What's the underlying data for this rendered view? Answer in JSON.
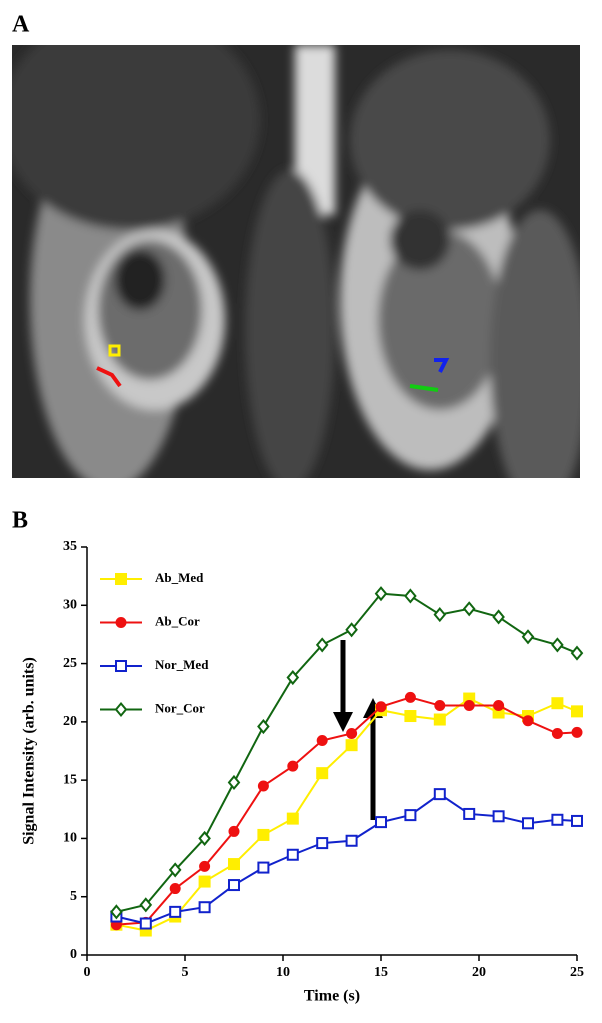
{
  "panel_a": {
    "label": "A"
  },
  "chart_data": {
    "type": "line",
    "panel_label": "B",
    "xlabel": "Time (s)",
    "ylabel": "Signal Intensity (arb. units)",
    "x": [
      1.5,
      3,
      4.5,
      6,
      7.5,
      9,
      10.5,
      12,
      13.5,
      15,
      16.5,
      18,
      19.5,
      21,
      22.5,
      24,
      25
    ],
    "series": [
      {
        "name": "Ab_Med",
        "color": "#ffee00",
        "marker": "square-filled",
        "values": [
          2.6,
          2.1,
          3.3,
          6.3,
          7.8,
          10.3,
          11.7,
          15.6,
          18.0,
          21.0,
          20.5,
          20.2,
          22.0,
          20.8,
          20.5,
          21.6,
          20.9
        ]
      },
      {
        "name": "Ab_Cor",
        "color": "#ee1111",
        "marker": "circle-filled",
        "values": [
          2.6,
          2.8,
          5.7,
          7.6,
          10.6,
          14.5,
          16.2,
          18.4,
          19.0,
          21.3,
          22.1,
          21.4,
          21.4,
          21.4,
          20.1,
          19.0,
          19.1
        ]
      },
      {
        "name": "Nor_Med",
        "color": "#1122cc",
        "marker": "square-open",
        "values": [
          3.3,
          2.7,
          3.7,
          4.1,
          6.0,
          7.5,
          8.6,
          9.6,
          9.8,
          11.4,
          12.0,
          13.8,
          12.1,
          11.9,
          11.3,
          11.6,
          11.5
        ]
      },
      {
        "name": "Nor_Cor",
        "color": "#116611",
        "marker": "diamond-open",
        "values": [
          3.7,
          4.3,
          7.3,
          10.0,
          14.8,
          19.6,
          23.8,
          26.6,
          27.9,
          31.0,
          30.8,
          29.2,
          29.7,
          29.0,
          27.3,
          26.6,
          25.9
        ]
      }
    ],
    "xlim": [
      0,
      25
    ],
    "xticks": [
      0,
      5,
      10,
      15,
      20,
      25
    ],
    "ylim": [
      0,
      35
    ],
    "yticks": [
      0,
      5,
      10,
      15,
      20,
      25,
      30,
      35
    ],
    "grid": false,
    "legend": "upper left"
  }
}
